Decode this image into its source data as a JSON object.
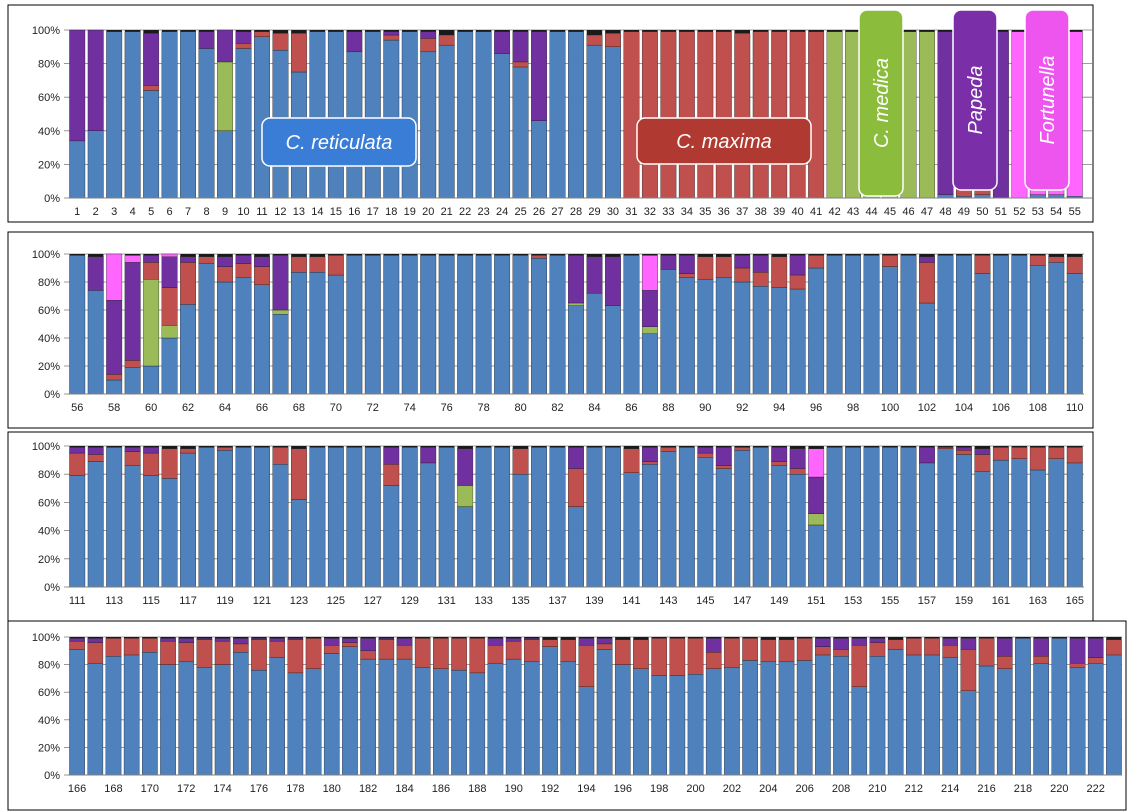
{
  "chart_data": [
    {
      "type": "bar",
      "stacked": true,
      "ylim": [
        0,
        100
      ],
      "yticks": [
        "0%",
        "20%",
        "40%",
        "60%",
        "80%",
        "100%"
      ],
      "x_start": 1,
      "x_end": 55,
      "xtick_step": 1,
      "component_order": [
        "blue",
        "green",
        "red",
        "purple",
        "magenta"
      ],
      "colors": {
        "blue": "#4f81bd",
        "green": "#9bbb59",
        "red": "#c0504d",
        "purple": "#7030a0",
        "magenta": "#ff66ff"
      },
      "overrides": {
        "1": {
          "blue": 34,
          "purple": 66
        },
        "2": {
          "blue": 40,
          "purple": 60
        },
        "5": {
          "blue": 64,
          "red": 3,
          "purple": 31
        },
        "8": {
          "blue": 89,
          "purple": 10
        },
        "9": {
          "blue": 40,
          "green": 41,
          "purple": 19
        },
        "10": {
          "blue": 89,
          "red": 3,
          "purple": 7
        },
        "11": {
          "blue": 96,
          "red": 3
        },
        "12": {
          "blue": 88,
          "red": 10
        },
        "13": {
          "blue": 75,
          "red": 23
        },
        "16": {
          "blue": 87,
          "purple": 12
        },
        "18": {
          "blue": 94,
          "red": 3,
          "purple": 2
        },
        "20": {
          "blue": 87,
          "red": 8,
          "purple": 4
        },
        "21": {
          "blue": 91,
          "red": 6
        },
        "24": {
          "blue": 86,
          "purple": 13
        },
        "25": {
          "blue": 78,
          "red": 3,
          "purple": 18
        },
        "26": {
          "blue": 46,
          "purple": 53
        },
        "29": {
          "blue": 91,
          "red": 6
        },
        "30": {
          "blue": 90,
          "red": 8
        },
        "31": {
          "red": 99
        },
        "32": {
          "red": 99
        },
        "33": {
          "red": 99
        },
        "34": {
          "red": 99
        },
        "35": {
          "red": 99
        },
        "36": {
          "red": 99
        },
        "37": {
          "red": 98
        },
        "38": {
          "red": 99
        },
        "39": {
          "red": 99
        },
        "40": {
          "red": 99
        },
        "41": {
          "red": 99
        },
        "42": {
          "green": 99
        },
        "43": {
          "green": 99
        },
        "44": {
          "green": 99
        },
        "45": {
          "green": 99
        },
        "46": {
          "green": 99
        },
        "47": {
          "green": 99
        },
        "48": {
          "blue": 2,
          "purple": 97
        },
        "49": {
          "blue": 1,
          "red": 6,
          "purple": 92
        },
        "50": {
          "blue": 2,
          "red": 34,
          "purple": 63
        },
        "51": {
          "purple": 99
        },
        "52": {
          "magenta": 99
        },
        "53": {
          "blue": 2,
          "magenta": 97
        },
        "54": {
          "blue": 2,
          "magenta": 97
        },
        "55": {
          "blue": 1,
          "magenta": 98
        }
      },
      "group_labels": [
        {
          "text": "C. reticulata",
          "color": "#3a7dd6"
        },
        {
          "text": "C. maxima",
          "color": "#b03a32"
        },
        {
          "text": "C. medica",
          "color": "#8cbc3c"
        },
        {
          "text": "Papeda",
          "color": "#7a2ea8"
        },
        {
          "text": "Fortunella",
          "color": "#ee55ee"
        }
      ]
    },
    {
      "type": "bar",
      "stacked": true,
      "ylim": [
        0,
        100
      ],
      "yticks": [
        "0%",
        "20%",
        "40%",
        "60%",
        "80%",
        "100%"
      ],
      "x_start": 56,
      "x_end": 110,
      "xtick_step": 2,
      "component_order": [
        "blue",
        "green",
        "red",
        "purple",
        "magenta"
      ],
      "colors": {
        "blue": "#4f81bd",
        "green": "#9bbb59",
        "red": "#c0504d",
        "purple": "#7030a0",
        "magenta": "#ff66ff"
      },
      "overrides": {
        "57": {
          "blue": 74,
          "purple": 24
        },
        "58": {
          "blue": 10,
          "red": 4,
          "purple": 53,
          "magenta": 33
        },
        "59": {
          "blue": 19,
          "red": 5,
          "purple": 70,
          "magenta": 5
        },
        "60": {
          "blue": 20,
          "green": 62,
          "red": 12,
          "purple": 5
        },
        "61": {
          "blue": 40,
          "green": 9,
          "red": 27,
          "purple": 22,
          "magenta": 2
        },
        "62": {
          "blue": 64,
          "red": 30,
          "purple": 4
        },
        "63": {
          "blue": 93,
          "red": 5
        },
        "64": {
          "blue": 80,
          "red": 11,
          "purple": 7
        },
        "65": {
          "blue": 83,
          "red": 10,
          "purple": 6
        },
        "66": {
          "blue": 78,
          "red": 13,
          "purple": 7
        },
        "67": {
          "blue": 57,
          "green": 3,
          "purple": 39
        },
        "68": {
          "blue": 87,
          "red": 11
        },
        "69": {
          "blue": 87,
          "red": 11
        },
        "70": {
          "blue": 85,
          "red": 14
        },
        "81": {
          "blue": 97,
          "red": 2
        },
        "83": {
          "blue": 63,
          "green": 2,
          "purple": 34
        },
        "84": {
          "blue": 72,
          "purple": 26
        },
        "85": {
          "blue": 63,
          "purple": 35
        },
        "87": {
          "blue": 43,
          "green": 5,
          "purple": 26,
          "magenta": 25
        },
        "88": {
          "blue": 89,
          "purple": 10
        },
        "89": {
          "blue": 83,
          "red": 3,
          "purple": 13
        },
        "90": {
          "blue": 82,
          "red": 16
        },
        "91": {
          "blue": 83,
          "red": 15
        },
        "92": {
          "blue": 80,
          "red": 10,
          "purple": 9
        },
        "93": {
          "blue": 77,
          "red": 10,
          "purple": 12
        },
        "94": {
          "blue": 76,
          "red": 22
        },
        "95": {
          "blue": 75,
          "red": 10,
          "purple": 14
        },
        "96": {
          "blue": 90,
          "red": 9
        },
        "100": {
          "blue": 91,
          "red": 8
        },
        "102": {
          "blue": 65,
          "red": 29,
          "purple": 4
        },
        "105": {
          "blue": 86,
          "red": 13
        },
        "108": {
          "blue": 92,
          "red": 7
        },
        "109": {
          "blue": 94,
          "red": 4
        },
        "110": {
          "blue": 86,
          "red": 12
        }
      }
    },
    {
      "type": "bar",
      "stacked": true,
      "ylim": [
        0,
        100
      ],
      "yticks": [
        "0%",
        "20%",
        "40%",
        "60%",
        "80%",
        "100%"
      ],
      "x_start": 111,
      "x_end": 165,
      "xtick_step": 2,
      "component_order": [
        "blue",
        "green",
        "red",
        "purple",
        "magenta"
      ],
      "colors": {
        "blue": "#4f81bd",
        "green": "#9bbb59",
        "red": "#c0504d",
        "purple": "#7030a0",
        "magenta": "#ff66ff"
      },
      "overrides": {
        "111": {
          "blue": 79,
          "red": 16,
          "purple": 4
        },
        "112": {
          "blue": 89,
          "red": 5,
          "purple": 5
        },
        "114": {
          "blue": 86,
          "red": 10,
          "purple": 3
        },
        "115": {
          "blue": 79,
          "red": 16,
          "purple": 4
        },
        "116": {
          "blue": 77,
          "red": 21
        },
        "117": {
          "blue": 95,
          "red": 3
        },
        "119": {
          "blue": 97,
          "red": 2
        },
        "122": {
          "blue": 87,
          "red": 12
        },
        "123": {
          "blue": 62,
          "red": 36
        },
        "128": {
          "blue": 72,
          "red": 15,
          "purple": 12
        },
        "130": {
          "blue": 88,
          "purple": 11
        },
        "132": {
          "blue": 57,
          "green": 15,
          "purple": 26
        },
        "135": {
          "blue": 80,
          "red": 18
        },
        "138": {
          "blue": 57,
          "red": 27,
          "purple": 15
        },
        "141": {
          "blue": 81,
          "red": 17
        },
        "142": {
          "blue": 87,
          "red": 2,
          "purple": 10
        },
        "143": {
          "blue": 96,
          "red": 3
        },
        "145": {
          "blue": 92,
          "red": 3,
          "purple": 4
        },
        "146": {
          "blue": 84,
          "red": 2,
          "purple": 13
        },
        "147": {
          "blue": 97,
          "red": 2
        },
        "149": {
          "blue": 86,
          "red": 3,
          "purple": 10
        },
        "150": {
          "blue": 80,
          "red": 4,
          "purple": 14
        },
        "151": {
          "blue": 44,
          "green": 8,
          "purple": 26,
          "magenta": 20
        },
        "157": {
          "blue": 88,
          "purple": 11
        },
        "158": {
          "blue": 98,
          "red": 1
        },
        "159": {
          "blue": 94,
          "red": 3,
          "purple": 2
        },
        "160": {
          "blue": 82,
          "red": 12,
          "purple": 4
        },
        "161": {
          "blue": 90,
          "red": 9
        },
        "162": {
          "blue": 91,
          "red": 8
        },
        "163": {
          "blue": 83,
          "red": 16
        },
        "164": {
          "blue": 91,
          "red": 8
        },
        "165": {
          "blue": 88,
          "red": 11
        }
      }
    },
    {
      "type": "bar",
      "stacked": true,
      "ylim": [
        0,
        100
      ],
      "yticks": [
        "0%",
        "20%",
        "40%",
        "60%",
        "80%",
        "100%"
      ],
      "x_start": 166,
      "x_end": 223,
      "xtick_step": 2,
      "component_order": [
        "blue",
        "green",
        "red",
        "purple",
        "magenta"
      ],
      "colors": {
        "blue": "#4f81bd",
        "green": "#9bbb59",
        "red": "#c0504d",
        "purple": "#7030a0",
        "magenta": "#ff66ff"
      },
      "overrides": {
        "166": {
          "blue": 91,
          "red": 6,
          "purple": 2
        },
        "167": {
          "blue": 81,
          "red": 15,
          "purple": 3
        },
        "168": {
          "blue": 86,
          "red": 13
        },
        "169": {
          "blue": 87,
          "red": 12
        },
        "170": {
          "blue": 89,
          "red": 10
        },
        "171": {
          "blue": 80,
          "red": 17,
          "purple": 2
        },
        "172": {
          "blue": 82,
          "red": 14,
          "purple": 3
        },
        "173": {
          "blue": 78,
          "red": 20,
          "purple": 1
        },
        "174": {
          "blue": 80,
          "red": 17,
          "purple": 2
        },
        "175": {
          "blue": 89,
          "red": 6,
          "purple": 4
        },
        "176": {
          "blue": 76,
          "red": 22,
          "purple": 1
        },
        "177": {
          "blue": 85,
          "red": 12,
          "purple": 2
        },
        "178": {
          "blue": 74,
          "red": 24,
          "purple": 1
        },
        "179": {
          "blue": 77,
          "red": 22
        },
        "180": {
          "blue": 88,
          "red": 6,
          "purple": 5
        },
        "181": {
          "blue": 93,
          "red": 3,
          "purple": 3
        },
        "182": {
          "blue": 84,
          "red": 6,
          "purple": 9
        },
        "183": {
          "blue": 84,
          "red": 14,
          "purple": 1
        },
        "184": {
          "blue": 84,
          "red": 10,
          "purple": 5
        },
        "185": {
          "blue": 78,
          "red": 21
        },
        "186": {
          "blue": 77,
          "red": 22
        },
        "187": {
          "blue": 76,
          "red": 23
        },
        "188": {
          "blue": 74,
          "red": 25
        },
        "189": {
          "blue": 81,
          "red": 13,
          "purple": 5
        },
        "190": {
          "blue": 84,
          "red": 13,
          "purple": 2
        },
        "191": {
          "blue": 82,
          "red": 16,
          "purple": 1
        },
        "192": {
          "blue": 93,
          "red": 5
        },
        "193": {
          "blue": 82,
          "red": 16
        },
        "194": {
          "blue": 64,
          "red": 30,
          "purple": 5
        },
        "195": {
          "blue": 91,
          "red": 4,
          "purple": 4
        },
        "196": {
          "blue": 80,
          "red": 18
        },
        "197": {
          "blue": 77,
          "red": 21
        },
        "198": {
          "blue": 72,
          "red": 27
        },
        "199": {
          "blue": 72,
          "red": 27
        },
        "200": {
          "blue": 73,
          "red": 26
        },
        "201": {
          "blue": 77,
          "red": 12,
          "purple": 10
        },
        "202": {
          "blue": 78,
          "red": 21
        },
        "203": {
          "blue": 83,
          "red": 16
        },
        "204": {
          "blue": 82,
          "red": 16
        },
        "205": {
          "blue": 82,
          "red": 16
        },
        "206": {
          "blue": 83,
          "red": 16
        },
        "207": {
          "blue": 87,
          "red": 6,
          "purple": 6
        },
        "208": {
          "blue": 86,
          "red": 5,
          "purple": 8
        },
        "209": {
          "blue": 64,
          "red": 30,
          "purple": 5
        },
        "210": {
          "blue": 86,
          "red": 10,
          "purple": 3
        },
        "211": {
          "blue": 91,
          "red": 7
        },
        "212": {
          "blue": 87,
          "red": 12
        },
        "213": {
          "blue": 87,
          "red": 12
        },
        "214": {
          "blue": 85,
          "red": 9,
          "purple": 5
        },
        "215": {
          "blue": 61,
          "red": 30,
          "purple": 8
        },
        "216": {
          "blue": 79,
          "red": 20
        },
        "217": {
          "blue": 77,
          "red": 9,
          "purple": 13
        },
        "219": {
          "blue": 81,
          "red": 5,
          "purple": 13
        },
        "221": {
          "blue": 78,
          "red": 3,
          "purple": 18
        },
        "222": {
          "blue": 81,
          "red": 4,
          "purple": 14
        },
        "223": {
          "blue": 87,
          "red": 11
        }
      }
    }
  ]
}
